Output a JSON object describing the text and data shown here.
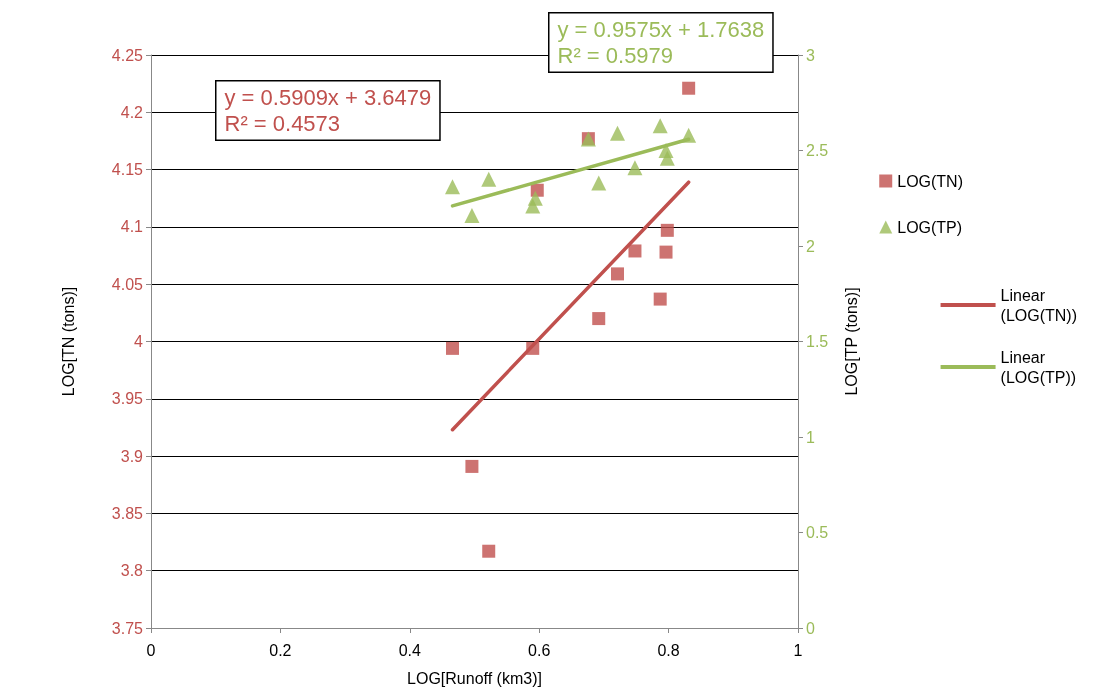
{
  "chart_data": {
    "type": "scatter",
    "xlabel": "LOG[Runoff (km3)]",
    "ylabel": "LOG[TN (tons)]",
    "y2label": "LOG[TP (tons)]",
    "xlim": [
      0,
      1
    ],
    "xticks": [
      0,
      0.2,
      0.4,
      0.6,
      0.8,
      1
    ],
    "ylim": [
      3.75,
      4.25
    ],
    "yticks": [
      3.75,
      3.8,
      3.85,
      3.9,
      3.95,
      4,
      4.05,
      4.1,
      4.15,
      4.2,
      4.25
    ],
    "y2lim": [
      0,
      3
    ],
    "y2ticks": [
      0,
      0.5,
      1,
      1.5,
      2,
      2.5,
      3
    ],
    "grid": "y",
    "legend": "right",
    "annotations": [
      "y = 0.5909x + 3.6479\nR² = 0.4573",
      "y = 0.9575x + 1.7638\nR² = 0.5979"
    ],
    "series": [
      {
        "name": "LOG(TN)",
        "marker": "square",
        "color": "#c0504d",
        "x": [
          0.466,
          0.496,
          0.522,
          0.59,
          0.597,
          0.676,
          0.692,
          0.721,
          0.748,
          0.787,
          0.796,
          0.798,
          0.831
        ],
        "values": [
          3.994,
          3.891,
          3.817,
          3.994,
          4.132,
          4.177,
          4.02,
          4.059,
          4.079,
          4.037,
          4.078,
          4.097,
          4.221
        ]
      },
      {
        "name": "LOG(TP)",
        "marker": "triangle",
        "color": "#9bbb59",
        "axis": "y2",
        "x": [
          0.466,
          0.496,
          0.522,
          0.59,
          0.594,
          0.676,
          0.692,
          0.721,
          0.748,
          0.787,
          0.796,
          0.798,
          0.831
        ],
        "values": [
          2.31,
          2.16,
          2.35,
          2.21,
          2.25,
          2.56,
          2.33,
          2.59,
          2.41,
          2.63,
          2.5,
          2.46,
          2.58
        ]
      },
      {
        "name": "Linear (LOG(TN))",
        "type": "line",
        "marker": "none",
        "color": "#c0504d",
        "x": [
          0.466,
          0.831
        ],
        "values": [
          3.923,
          4.139
        ]
      },
      {
        "name": "Linear (LOG(TP))",
        "type": "line",
        "marker": "none",
        "color": "#9bbb59",
        "axis": "y2",
        "x": [
          0.466,
          0.831
        ],
        "values": [
          2.21,
          2.559
        ]
      }
    ]
  }
}
